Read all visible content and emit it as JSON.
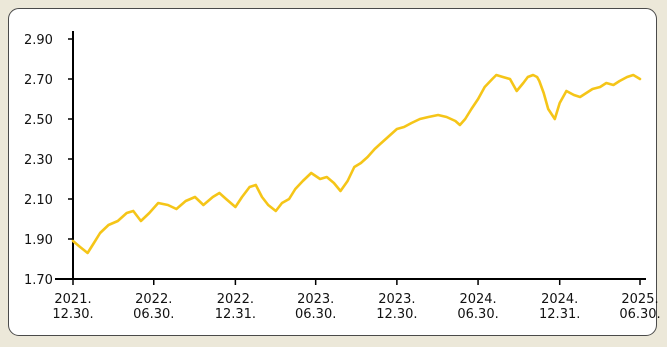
{
  "chart_data": {
    "type": "line",
    "title": "",
    "xlabel": "",
    "ylabel": "",
    "ylim": [
      1.7,
      2.9
    ],
    "yticks": [
      "1.70",
      "1.90",
      "2.10",
      "2.30",
      "2.50",
      "2.70",
      "2.90"
    ],
    "xlim": [
      "2021-12-30",
      "2025-06-30"
    ],
    "xticks": [
      {
        "date": "2021-12-30",
        "line1": "2021.",
        "line2": "12.30."
      },
      {
        "date": "2022-06-30",
        "line1": "2022.",
        "line2": "06.30."
      },
      {
        "date": "2022-12-31",
        "line1": "2022.",
        "line2": "12.31."
      },
      {
        "date": "2023-06-30",
        "line1": "2023.",
        "line2": "06.30."
      },
      {
        "date": "2023-12-30",
        "line1": "2023.",
        "line2": "12.30."
      },
      {
        "date": "2024-06-30",
        "line1": "2024.",
        "line2": "06.30."
      },
      {
        "date": "2024-12-31",
        "line1": "2024.",
        "line2": "12.31."
      },
      {
        "date": "2025-06-30",
        "line1": "2025.",
        "line2": "06.30."
      }
    ],
    "grid": false,
    "legend": "none",
    "series_color": "#f5c518",
    "series": [
      {
        "x": [
          "2021-12-30",
          "2022-01-15",
          "2022-02-01",
          "2022-02-15",
          "2022-03-01",
          "2022-03-20",
          "2022-04-10",
          "2022-04-30",
          "2022-05-15",
          "2022-06-01",
          "2022-06-20",
          "2022-07-10",
          "2022-08-01",
          "2022-08-20",
          "2022-09-10",
          "2022-10-01",
          "2022-10-20",
          "2022-11-10",
          "2022-11-25",
          "2022-12-10",
          "2022-12-31",
          "2023-01-15",
          "2023-02-01",
          "2023-02-15",
          "2023-03-01",
          "2023-03-15",
          "2023-04-01",
          "2023-04-15",
          "2023-05-01",
          "2023-05-15",
          "2023-06-01",
          "2023-06-20",
          "2023-07-10",
          "2023-07-25",
          "2023-08-10",
          "2023-08-25",
          "2023-09-10",
          "2023-09-25",
          "2023-10-10",
          "2023-10-25",
          "2023-11-10",
          "2023-11-25",
          "2023-12-10",
          "2023-12-30",
          "2024-01-15",
          "2024-02-01",
          "2024-02-20",
          "2024-03-10",
          "2024-04-01",
          "2024-04-20",
          "2024-05-10",
          "2024-05-20",
          "2024-06-01",
          "2024-06-15",
          "2024-06-30",
          "2024-07-15",
          "2024-08-01",
          "2024-08-10",
          "2024-08-25",
          "2024-09-10",
          "2024-09-25",
          "2024-10-10",
          "2024-10-20",
          "2024-11-01",
          "2024-11-10",
          "2024-11-15",
          "2024-11-25",
          "2024-12-05",
          "2024-12-20",
          "2024-12-31",
          "2025-01-15",
          "2025-02-01",
          "2025-02-15",
          "2025-03-01",
          "2025-03-15",
          "2025-04-01",
          "2025-04-15",
          "2025-05-01",
          "2025-05-15",
          "2025-06-01",
          "2025-06-15",
          "2025-06-30"
        ],
        "values": [
          1.89,
          1.86,
          1.83,
          1.88,
          1.93,
          1.97,
          1.99,
          2.03,
          2.04,
          1.99,
          2.03,
          2.08,
          2.07,
          2.05,
          2.09,
          2.11,
          2.07,
          2.11,
          2.13,
          2.1,
          2.06,
          2.11,
          2.16,
          2.17,
          2.11,
          2.07,
          2.04,
          2.08,
          2.1,
          2.15,
          2.19,
          2.23,
          2.2,
          2.21,
          2.18,
          2.14,
          2.19,
          2.26,
          2.28,
          2.31,
          2.35,
          2.38,
          2.41,
          2.45,
          2.46,
          2.48,
          2.5,
          2.51,
          2.52,
          2.51,
          2.49,
          2.47,
          2.5,
          2.55,
          2.6,
          2.66,
          2.7,
          2.72,
          2.71,
          2.7,
          2.64,
          2.68,
          2.71,
          2.72,
          2.71,
          2.69,
          2.63,
          2.55,
          2.5,
          2.58,
          2.64,
          2.62,
          2.61,
          2.63,
          2.65,
          2.66,
          2.68,
          2.67,
          2.69,
          2.71,
          2.72,
          2.7
        ]
      }
    ]
  }
}
